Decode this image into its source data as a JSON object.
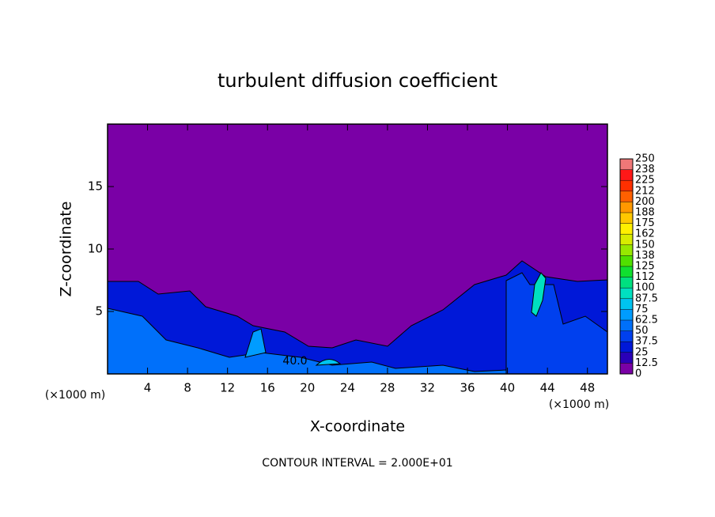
{
  "chart_data": {
    "type": "contour",
    "title": "turbulent diffusion coefficient",
    "x_label": "X-coordinate",
    "y_label": "Z-coordinate",
    "x_unit_label_left": "(×1000 m)",
    "x_unit_label_right": "(×1000 m)",
    "footer": "CONTOUR INTERVAL = 2.000E+01",
    "contour_label": "40.0",
    "xlim": [
      0,
      50
    ],
    "xticks": [
      4,
      8,
      12,
      16,
      20,
      24,
      28,
      32,
      36,
      40,
      44,
      48
    ],
    "ylim": [
      0,
      20
    ],
    "yticks": [
      5,
      10,
      15
    ],
    "colorbar": {
      "ticks": [
        0,
        12.5,
        25,
        37.5,
        50,
        62.5,
        75,
        87.5,
        100,
        112,
        125,
        138,
        150,
        162,
        175,
        188,
        200,
        212,
        225,
        238,
        250
      ],
      "colors": [
        "#7a00a6",
        "#2a00b8",
        "#0018d8",
        "#0040ee",
        "#0070fa",
        "#009cff",
        "#00c4f0",
        "#00e0c0",
        "#00e080",
        "#10e030",
        "#50e000",
        "#98e800",
        "#d8ec00",
        "#fff000",
        "#ffc800",
        "#ff9800",
        "#ff6000",
        "#ff3000",
        "#ff1818",
        "#f07878"
      ]
    }
  }
}
